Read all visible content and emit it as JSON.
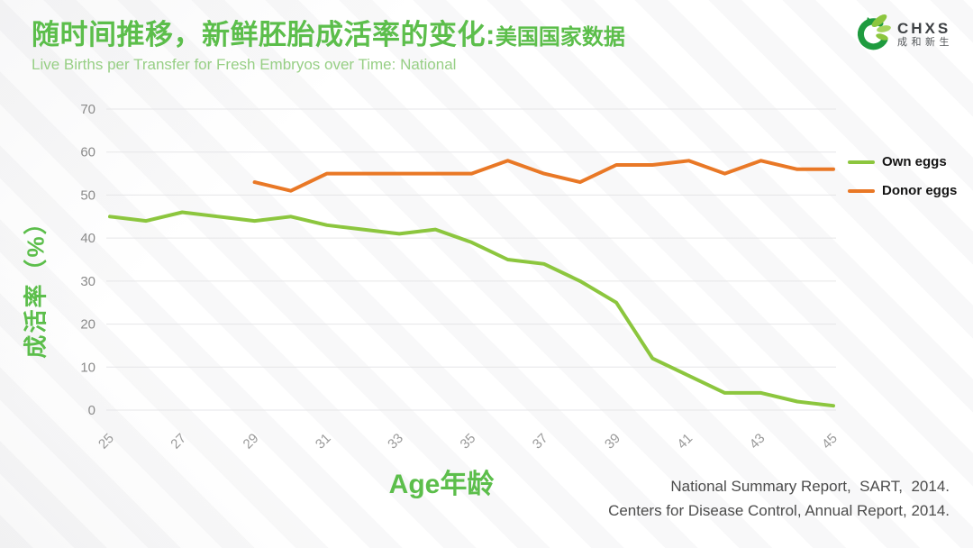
{
  "header": {
    "title_zh": "随时间推移，新鲜胚胎成活率的变化:",
    "title_suffix": "美国国家数据",
    "subtitle_en": "Live Births per Transfer for Fresh Embryos over Time: National"
  },
  "logo": {
    "abbr": "CHXS",
    "name_zh": "成和新生",
    "icon": "phoenix-bird-icon",
    "color_dark": "#1f9b3f",
    "color_light": "#8cc63e"
  },
  "chart_data": {
    "type": "line",
    "x": [
      25,
      26,
      27,
      28,
      29,
      30,
      31,
      32,
      33,
      34,
      35,
      36,
      37,
      38,
      39,
      40,
      41,
      42,
      43,
      44,
      45
    ],
    "xticks": [
      25,
      27,
      29,
      31,
      33,
      35,
      37,
      39,
      41,
      43,
      45
    ],
    "series": [
      {
        "name": "Own eggs",
        "color": "#8cc63e",
        "start_age": 25,
        "values": [
          45,
          44,
          46,
          45,
          44,
          45,
          43,
          42,
          41,
          42,
          39,
          35,
          34,
          30,
          25,
          12,
          8,
          4,
          4,
          2,
          1
        ]
      },
      {
        "name": "Donor eggs",
        "color": "#e97826",
        "start_age": 29,
        "values": [
          53,
          51,
          55,
          55,
          55,
          55,
          55,
          58,
          55,
          53,
          57,
          57,
          58,
          55,
          58,
          56,
          56
        ]
      }
    ],
    "xlabel": "Age年龄",
    "ylabel": "成活率（%）",
    "ylim": [
      0,
      70
    ],
    "ytick_step": 10,
    "grid": "horizontal",
    "legend_position": "right"
  },
  "footer": {
    "sources": [
      "National Summary Report,  SART,  2014.",
      "Centers for Disease Control, Annual Report, 2014."
    ]
  }
}
